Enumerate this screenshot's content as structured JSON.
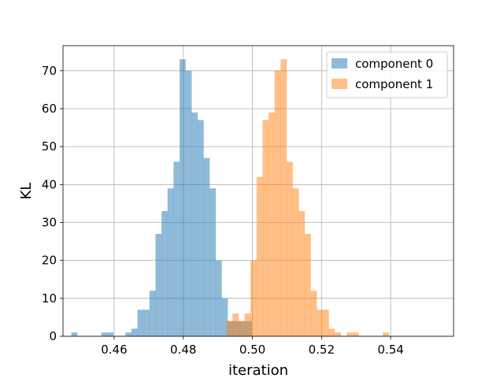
{
  "chart_data": {
    "type": "histogram",
    "xlabel": "iteration",
    "ylabel": "KL",
    "xlim": [
      0.4452,
      0.5582
    ],
    "ylim": [
      0,
      76.6
    ],
    "grid": true,
    "legend_position": "top-right",
    "x_ticks": [
      {
        "value": 0.46,
        "label": "0.46"
      },
      {
        "value": 0.48,
        "label": "0.48"
      },
      {
        "value": 0.5,
        "label": "0.50"
      },
      {
        "value": 0.52,
        "label": "0.52"
      },
      {
        "value": 0.54,
        "label": "0.54"
      }
    ],
    "y_ticks": [
      {
        "value": 0,
        "label": "0"
      },
      {
        "value": 10,
        "label": "10"
      },
      {
        "value": 20,
        "label": "20"
      },
      {
        "value": 30,
        "label": "30"
      },
      {
        "value": 40,
        "label": "40"
      },
      {
        "value": 50,
        "label": "50"
      },
      {
        "value": 60,
        "label": "60"
      },
      {
        "value": 70,
        "label": "70"
      }
    ],
    "series": [
      {
        "name": "component 0",
        "color": "#1f77b4",
        "opacity": 0.5,
        "bin_start": 0.4476,
        "bin_width": 0.00174,
        "counts": [
          1,
          0,
          0,
          0,
          0,
          1,
          1,
          0,
          0,
          1,
          2,
          7,
          7,
          12,
          27,
          33,
          39,
          46,
          73,
          70,
          59,
          57,
          47,
          39,
          20,
          10,
          4,
          4,
          4,
          4,
          0
        ]
      },
      {
        "name": "component 1",
        "color": "#ff7f0e",
        "opacity": 0.5,
        "bin_start": 0.4925,
        "bin_width": 0.00174,
        "counts": [
          4,
          6,
          4,
          6,
          20,
          42,
          57,
          59,
          70,
          73,
          46,
          39,
          33,
          27,
          12,
          7,
          7,
          2,
          1,
          0,
          1,
          1,
          0,
          0,
          0,
          0,
          1
        ]
      }
    ]
  }
}
